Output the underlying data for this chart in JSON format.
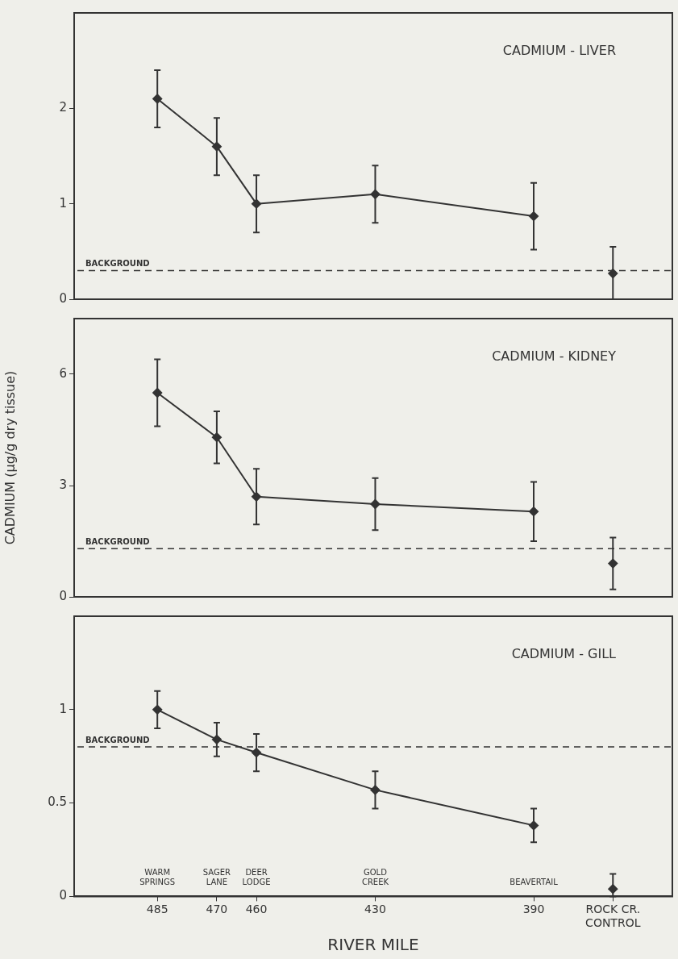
{
  "chart_data": [
    {
      "type": "line",
      "title": "CADMIUM - LIVER",
      "xlim": [
        506,
        355
      ],
      "ylim": [
        0,
        3
      ],
      "yticks": [
        0,
        1,
        2
      ],
      "tick_labels": "y",
      "grid": false,
      "legend": false,
      "marker": "diamond",
      "series": [
        {
          "color": "#333333",
          "x": [
            485,
            470,
            460,
            430,
            390
          ],
          "values": [
            2.1,
            1.6,
            1.0,
            1.1,
            0.87
          ],
          "errors": [
            0.3,
            0.3,
            0.3,
            0.3,
            0.35
          ]
        },
        {
          "type": "scatter",
          "color": "#333333",
          "x": [
            370
          ],
          "values": [
            0.27
          ],
          "errors": [
            [
              0,
              0.55
            ]
          ]
        }
      ],
      "ref_lines": [
        {
          "axis": "y",
          "value": 0.3,
          "label": "BACKGROUND",
          "color": "#333333",
          "line_style": "dashed"
        }
      ]
    },
    {
      "type": "line",
      "title": "CADMIUM - KIDNEY",
      "ylabel": "CADMIUM (µg/g dry tissue)",
      "xlim": [
        506,
        355
      ],
      "ylim": [
        0,
        7.5
      ],
      "yticks": [
        0,
        3,
        6
      ],
      "tick_labels": "y",
      "grid": false,
      "legend": false,
      "marker": "diamond",
      "series": [
        {
          "color": "#333333",
          "x": [
            485,
            470,
            460,
            430,
            390
          ],
          "values": [
            5.5,
            4.3,
            2.7,
            2.5,
            2.3
          ],
          "errors": [
            0.9,
            0.7,
            0.75,
            0.7,
            0.8
          ]
        },
        {
          "type": "scatter",
          "color": "#333333",
          "x": [
            370
          ],
          "values": [
            0.9
          ],
          "errors": [
            0.7
          ]
        }
      ],
      "ref_lines": [
        {
          "axis": "y",
          "value": 1.3,
          "label": "BACKGROUND",
          "color": "#333333",
          "line_style": "dashed"
        }
      ]
    },
    {
      "type": "line",
      "title": "CADMIUM - GILL",
      "xlabel": "RIVER MILE",
      "xlim": [
        506,
        355
      ],
      "xticks": [
        485,
        470,
        460,
        430,
        390,
        {
          "value": 370,
          "label": "ROCK CR.\nCONTROL"
        }
      ],
      "ylim": [
        0,
        1.5
      ],
      "yticks": [
        0,
        0.5,
        1
      ],
      "grid": false,
      "legend": false,
      "marker": "diamond",
      "series": [
        {
          "color": "#333333",
          "x": [
            485,
            470,
            460,
            430,
            390
          ],
          "values": [
            1.0,
            0.84,
            0.77,
            0.57,
            0.38
          ],
          "errors": [
            0.1,
            0.09,
            0.1,
            0.1,
            0.09
          ]
        },
        {
          "type": "scatter",
          "color": "#333333",
          "x": [
            370
          ],
          "values": [
            0.04
          ],
          "errors": [
            [
              0,
              0.12
            ]
          ]
        }
      ],
      "ref_lines": [
        {
          "axis": "y",
          "value": 0.8,
          "label": "BACKGROUND",
          "color": "#333333",
          "line_style": "dashed"
        }
      ],
      "annotations": [
        "WARM SPRINGS",
        "SAGER LANE",
        "DEER LODGE",
        "GOLD CREEK",
        "BEAVERTAIL"
      ]
    }
  ]
}
